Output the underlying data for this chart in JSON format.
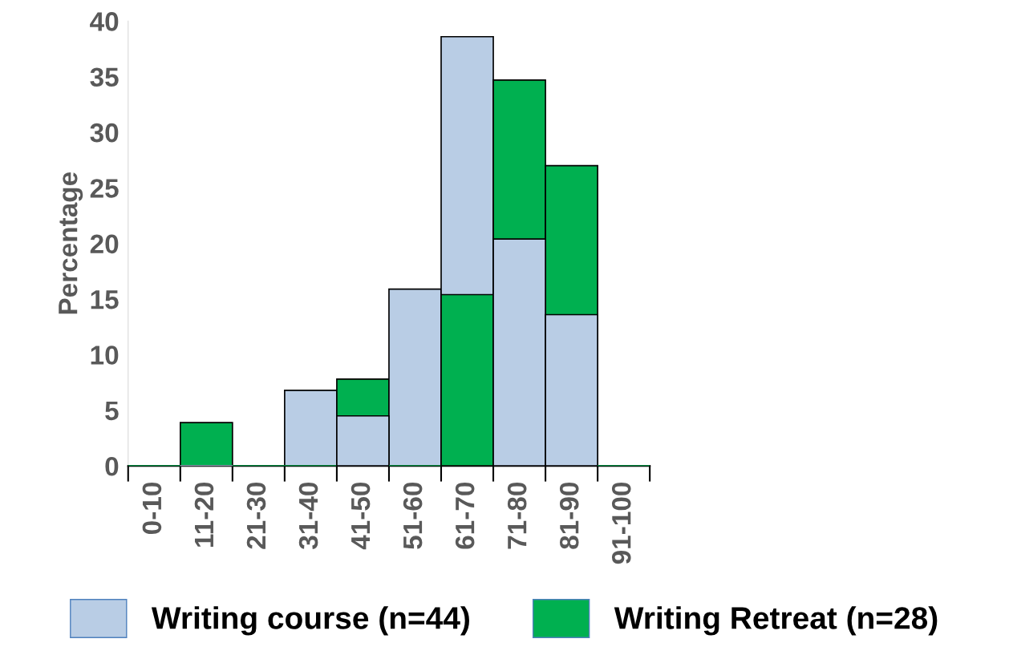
{
  "chart_data": {
    "type": "bar",
    "ylabel": "Percentage",
    "categories": [
      "0-10",
      "11-20",
      "21-30",
      "31-40",
      "41-50",
      "51-60",
      "61-70",
      "71-80",
      "81-90",
      "91-100"
    ],
    "series": [
      {
        "name": "Writing course (n=44)",
        "color": "#b9cde5",
        "values": [
          0,
          0,
          0,
          6.8,
          4.5,
          15.9,
          38.6,
          20.4,
          13.6,
          0
        ]
      },
      {
        "name": "Writing Retreat (n=28)",
        "color": "#00b050",
        "values": [
          0,
          3.9,
          0,
          0,
          7.8,
          0,
          15.4,
          34.7,
          27.0,
          0
        ]
      }
    ],
    "ylim": [
      0,
      40
    ],
    "yticks": [
      0,
      5,
      10,
      15,
      20,
      25,
      30,
      35,
      40
    ],
    "grid": false,
    "legend": "bottom"
  }
}
